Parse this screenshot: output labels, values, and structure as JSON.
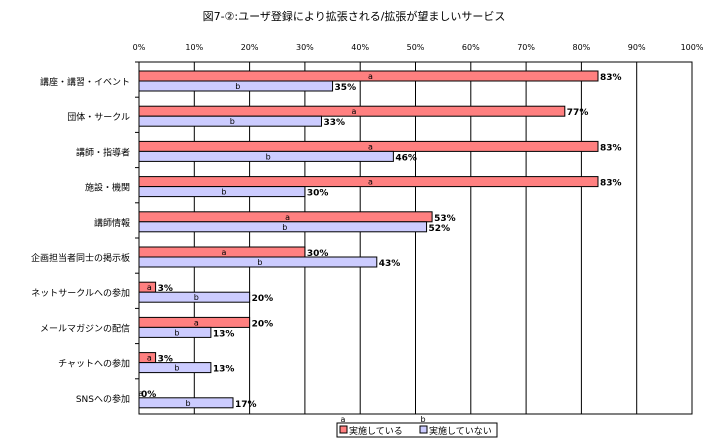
{
  "chart_data": {
    "type": "bar",
    "orientation": "horizontal",
    "title": "図7-②:ユーザ登録により拡張される/拡張が望ましいサービス",
    "categories": [
      "講座・講習・イベント",
      "団体・サークル",
      "講師・指導者",
      "施設・機関",
      "講師情報",
      "企画担当者同士の掲示板",
      "ネットサークルへの参加",
      "メールマガジンの配信",
      "チャットへの参加",
      "SNSへの参加"
    ],
    "series": [
      {
        "name": "実施している",
        "marker": "a",
        "color": "#ff8080",
        "values": [
          83,
          77,
          83,
          83,
          53,
          30,
          3,
          20,
          3,
          0
        ]
      },
      {
        "name": "実施していない",
        "marker": "b",
        "color": "#ccccff",
        "values": [
          35,
          33,
          46,
          30,
          52,
          43,
          20,
          13,
          13,
          17
        ]
      }
    ],
    "value_suffix": "%",
    "xlim": [
      0,
      100
    ],
    "xticks": [
      "0%",
      "10%",
      "20%",
      "30%",
      "40%",
      "50%",
      "60%",
      "70%",
      "80%",
      "90%",
      "100%"
    ],
    "grid": true,
    "legend_position": "bottom"
  }
}
